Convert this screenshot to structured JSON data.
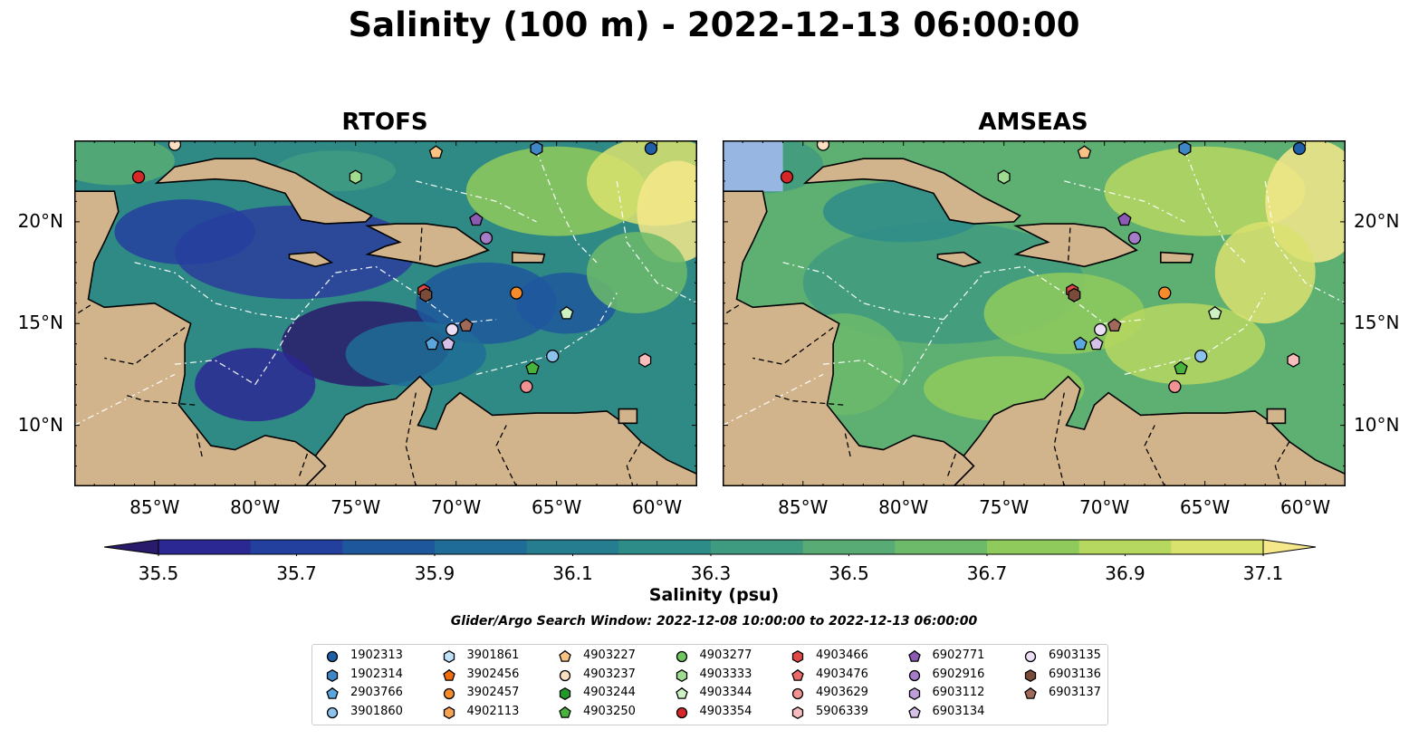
{
  "title": "Salinity (100 m) - 2022-12-13 06:00:00",
  "panels": [
    {
      "title": "RTOFS"
    },
    {
      "title": "AMSEAS"
    }
  ],
  "map": {
    "lon_range": [
      -89,
      -58
    ],
    "lat_range": [
      7,
      24
    ],
    "lon_ticks": [
      "85°W",
      "80°W",
      "75°W",
      "70°W",
      "65°W",
      "60°W"
    ],
    "lat_ticks": [
      "20°N",
      "15°N",
      "10°N"
    ],
    "land_color": "#d2b48c",
    "ocean_color": "#97b6e1",
    "coastline_color": "#000000",
    "eez_line_color": "#ffffff"
  },
  "colorbar": {
    "label": "Salinity (psu)",
    "ticks": [
      "35.5",
      "35.7",
      "35.9",
      "36.1",
      "36.3",
      "36.5",
      "36.7",
      "36.9",
      "37.1"
    ],
    "colors": [
      "#2a1a6b",
      "#2b2893",
      "#24409e",
      "#1f579c",
      "#1e6c97",
      "#257d8f",
      "#2e8c88",
      "#3f9b80",
      "#58ab74",
      "#6cba6a",
      "#8fca5c",
      "#b6d760",
      "#dae26e",
      "#f5e88a"
    ]
  },
  "search_window": "Glider/Argo Search Window: 2022-12-08 10:00:00 to 2022-12-13 06:00:00",
  "legend": [
    {
      "id": "1902313",
      "marker": "circle",
      "color": "#1f5fa8"
    },
    {
      "id": "1902314",
      "marker": "hexagon",
      "color": "#3f86c6"
    },
    {
      "id": "2903766",
      "marker": "pentagon",
      "color": "#5aa6de"
    },
    {
      "id": "3901860",
      "marker": "circle",
      "color": "#8cc3ee"
    },
    {
      "id": "3901861",
      "marker": "hexagon",
      "color": "#bfe0f7"
    },
    {
      "id": "3902456",
      "marker": "pentagon",
      "color": "#f06d0d"
    },
    {
      "id": "3902457",
      "marker": "circle",
      "color": "#f58b2a"
    },
    {
      "id": "4902113",
      "marker": "hexagon",
      "color": "#f8a34f"
    },
    {
      "id": "4903227",
      "marker": "pentagon",
      "color": "#fbc383"
    },
    {
      "id": "4903237",
      "marker": "circle",
      "color": "#fde0c2"
    },
    {
      "id": "4903244",
      "marker": "hexagon",
      "color": "#229a2a"
    },
    {
      "id": "4903250",
      "marker": "pentagon",
      "color": "#47b33d"
    },
    {
      "id": "4903277",
      "marker": "circle",
      "color": "#6fc55f"
    },
    {
      "id": "4903333",
      "marker": "hexagon",
      "color": "#9fdc8f"
    },
    {
      "id": "4903344",
      "marker": "pentagon",
      "color": "#cdf1c3"
    },
    {
      "id": "4903354",
      "marker": "circle",
      "color": "#d62728"
    },
    {
      "id": "4903466",
      "marker": "hexagon",
      "color": "#e04848"
    },
    {
      "id": "4903476",
      "marker": "pentagon",
      "color": "#ea6a6a"
    },
    {
      "id": "4903629",
      "marker": "circle",
      "color": "#f29393"
    },
    {
      "id": "5906339",
      "marker": "hexagon",
      "color": "#f8bcbc"
    },
    {
      "id": "6902771",
      "marker": "pentagon",
      "color": "#8c5ab4"
    },
    {
      "id": "6902916",
      "marker": "circle",
      "color": "#a57cc8"
    },
    {
      "id": "6903112",
      "marker": "hexagon",
      "color": "#bd9ed8"
    },
    {
      "id": "6903134",
      "marker": "pentagon",
      "color": "#d5c0e8"
    },
    {
      "id": "6903135",
      "marker": "circle",
      "color": "#ecdff5"
    },
    {
      "id": "6903136",
      "marker": "hexagon",
      "color": "#7b4b3a"
    },
    {
      "id": "6903137",
      "marker": "pentagon",
      "color": "#a0695a"
    }
  ],
  "floats": [
    {
      "lon": -85.8,
      "lat": 22.2,
      "ref": 15
    },
    {
      "lon": -84.0,
      "lat": 23.8,
      "ref": 9
    },
    {
      "lon": -75.0,
      "lat": 22.2,
      "ref": 13
    },
    {
      "lon": -71.0,
      "lat": 23.4,
      "ref": 8
    },
    {
      "lon": -66.0,
      "lat": 23.6,
      "ref": 1
    },
    {
      "lon": -60.3,
      "lat": 23.6,
      "ref": 0
    },
    {
      "lon": -69.0,
      "lat": 20.1,
      "ref": 20
    },
    {
      "lon": -68.5,
      "lat": 19.2,
      "ref": 21
    },
    {
      "lon": -71.6,
      "lat": 16.6,
      "ref": 16
    },
    {
      "lon": -71.5,
      "lat": 16.4,
      "ref": 25
    },
    {
      "lon": -67.0,
      "lat": 16.5,
      "ref": 6
    },
    {
      "lon": -64.5,
      "lat": 15.5,
      "ref": 14
    },
    {
      "lon": -69.5,
      "lat": 14.9,
      "ref": 26
    },
    {
      "lon": -70.2,
      "lat": 14.7,
      "ref": 24
    },
    {
      "lon": -71.2,
      "lat": 14.0,
      "ref": 2
    },
    {
      "lon": -70.4,
      "lat": 14.0,
      "ref": 23
    },
    {
      "lon": -65.2,
      "lat": 13.4,
      "ref": 3
    },
    {
      "lon": -66.2,
      "lat": 12.8,
      "ref": 11
    },
    {
      "lon": -66.5,
      "lat": 11.9,
      "ref": 18
    },
    {
      "lon": -60.6,
      "lat": 13.2,
      "ref": 19
    }
  ]
}
